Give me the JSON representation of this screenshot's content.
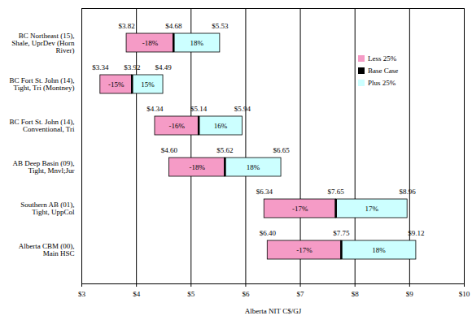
{
  "chart_data": {
    "type": "bar",
    "orientation": "horizontal",
    "categories": [
      "BC Northeast (15), Shale, UprDev (Horn River)",
      "BC Fort St. John (14), Tight, Tri (Montney)",
      "BC Fort St. John (14), Conventional, Tri",
      "AB Deep Basin (09), Tight, Mnvl;Jur",
      "Southern AB (01), Tight, UppCol",
      "Alberta CBM (00), Main HSC"
    ],
    "series": [
      {
        "name": "Less 25%",
        "color": "#f59bc6",
        "values": [
          3.82,
          3.34,
          4.34,
          4.6,
          6.34,
          6.4
        ],
        "value_labels": [
          "$3.82",
          "$3.34",
          "$4.34",
          "$4.60",
          "$6.34",
          "$6.40"
        ],
        "change": [
          -18,
          -15,
          -16,
          -18,
          -17,
          -17
        ],
        "change_labels": [
          "-18%",
          "-15%",
          "-16%",
          "-18%",
          "-17%",
          "-17%"
        ]
      },
      {
        "name": "Base Case",
        "color": "#000000",
        "values": [
          4.68,
          3.92,
          5.14,
          5.62,
          7.65,
          7.75
        ],
        "value_labels": [
          "$4.68",
          "$3.92",
          "$5.14",
          "$5.62",
          "$7.65",
          "$7.75"
        ]
      },
      {
        "name": "Plus 25%",
        "color": "#ccffff",
        "values": [
          5.53,
          4.49,
          5.94,
          6.65,
          8.96,
          9.12
        ],
        "value_labels": [
          "$5.53",
          "$4.49",
          "$5.94",
          "$6.65",
          "$8.96",
          "$9.12"
        ],
        "change": [
          18,
          15,
          16,
          18,
          17,
          18
        ],
        "change_labels": [
          "18%",
          "15%",
          "16%",
          "18%",
          "17%",
          "18%"
        ]
      }
    ],
    "x_label": "Alberta NIT C$/GJ",
    "xlim": [
      3,
      10
    ],
    "xticks": [
      {
        "value": 3,
        "label": "$3"
      },
      {
        "value": 4,
        "label": "$4"
      },
      {
        "value": 5,
        "label": "$5"
      },
      {
        "value": 6,
        "label": "$6"
      },
      {
        "value": 7,
        "label": "$7"
      },
      {
        "value": 8,
        "label": "$8"
      },
      {
        "value": 9,
        "label": "$9"
      },
      {
        "value": 10,
        "label": "$10"
      }
    ],
    "grid": true,
    "legend": "right",
    "data_labels": true
  }
}
